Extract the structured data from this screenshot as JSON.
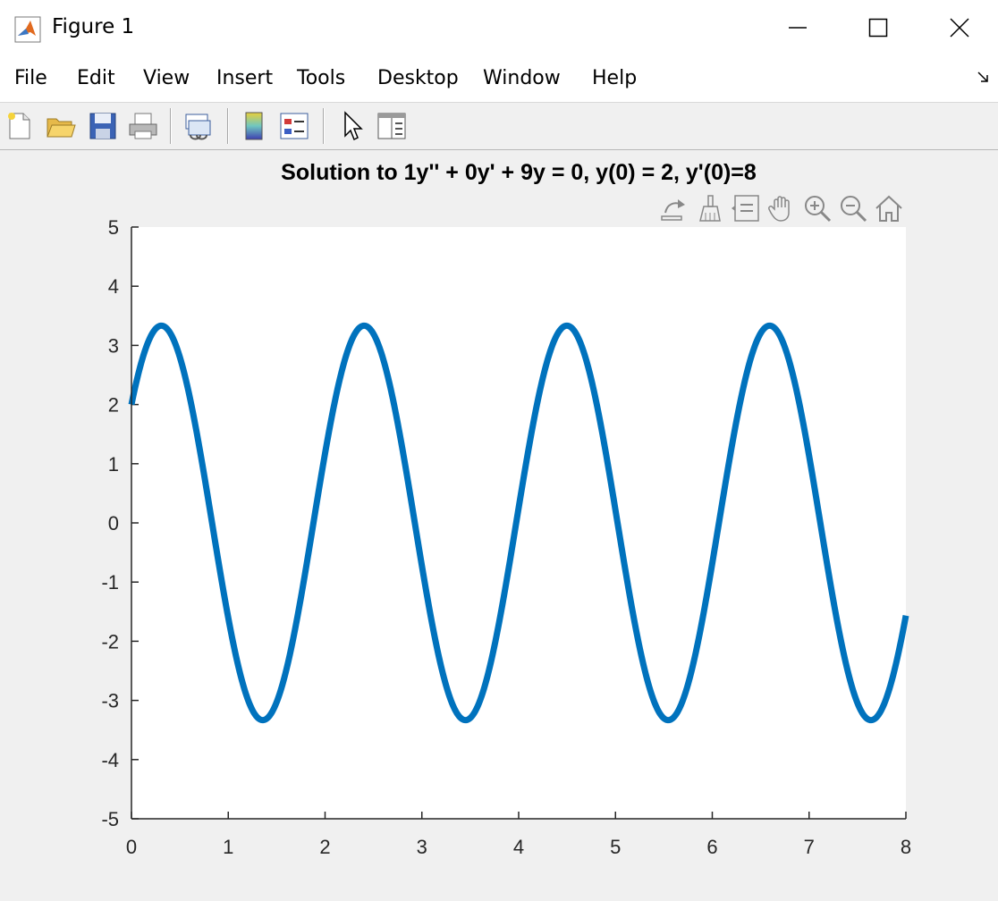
{
  "window": {
    "title": "Figure 1"
  },
  "menu": {
    "items": [
      "File",
      "Edit",
      "View",
      "Insert",
      "Tools",
      "Desktop",
      "Window",
      "Help"
    ]
  },
  "toolbar": {
    "icons": [
      "new-figure-icon",
      "open-file-icon",
      "save-icon",
      "print-icon",
      "link-plot-icon",
      "colorbar-icon",
      "legend-icon",
      "edit-plot-icon",
      "property-inspector-icon"
    ]
  },
  "axes_toolbar": {
    "icons": [
      "export-icon",
      "brush-icon",
      "data-tips-icon",
      "pan-icon",
      "zoom-in-icon",
      "zoom-out-icon",
      "home-icon"
    ]
  },
  "colors": {
    "line": "#0072BD",
    "axes_bg": "#ffffff",
    "figure_bg": "#f0f0f0"
  },
  "chart_data": {
    "type": "line",
    "title": "Solution to 1y'' + 0y' + 9y = 0, y(0) = 2, y'(0)=8",
    "xlabel": "",
    "ylabel": "",
    "xlim": [
      0,
      8
    ],
    "ylim": [
      -5,
      5
    ],
    "xticks": [
      0,
      1,
      2,
      3,
      4,
      5,
      6,
      7,
      8
    ],
    "yticks": [
      5,
      4,
      3,
      2,
      1,
      0,
      -1,
      -2,
      -3,
      -4,
      -5
    ],
    "grid": false,
    "series": [
      {
        "function": "y(t) = 2*cos(3t) + (8/3)*sin(3t)",
        "x_range": [
          0,
          8
        ]
      }
    ]
  }
}
